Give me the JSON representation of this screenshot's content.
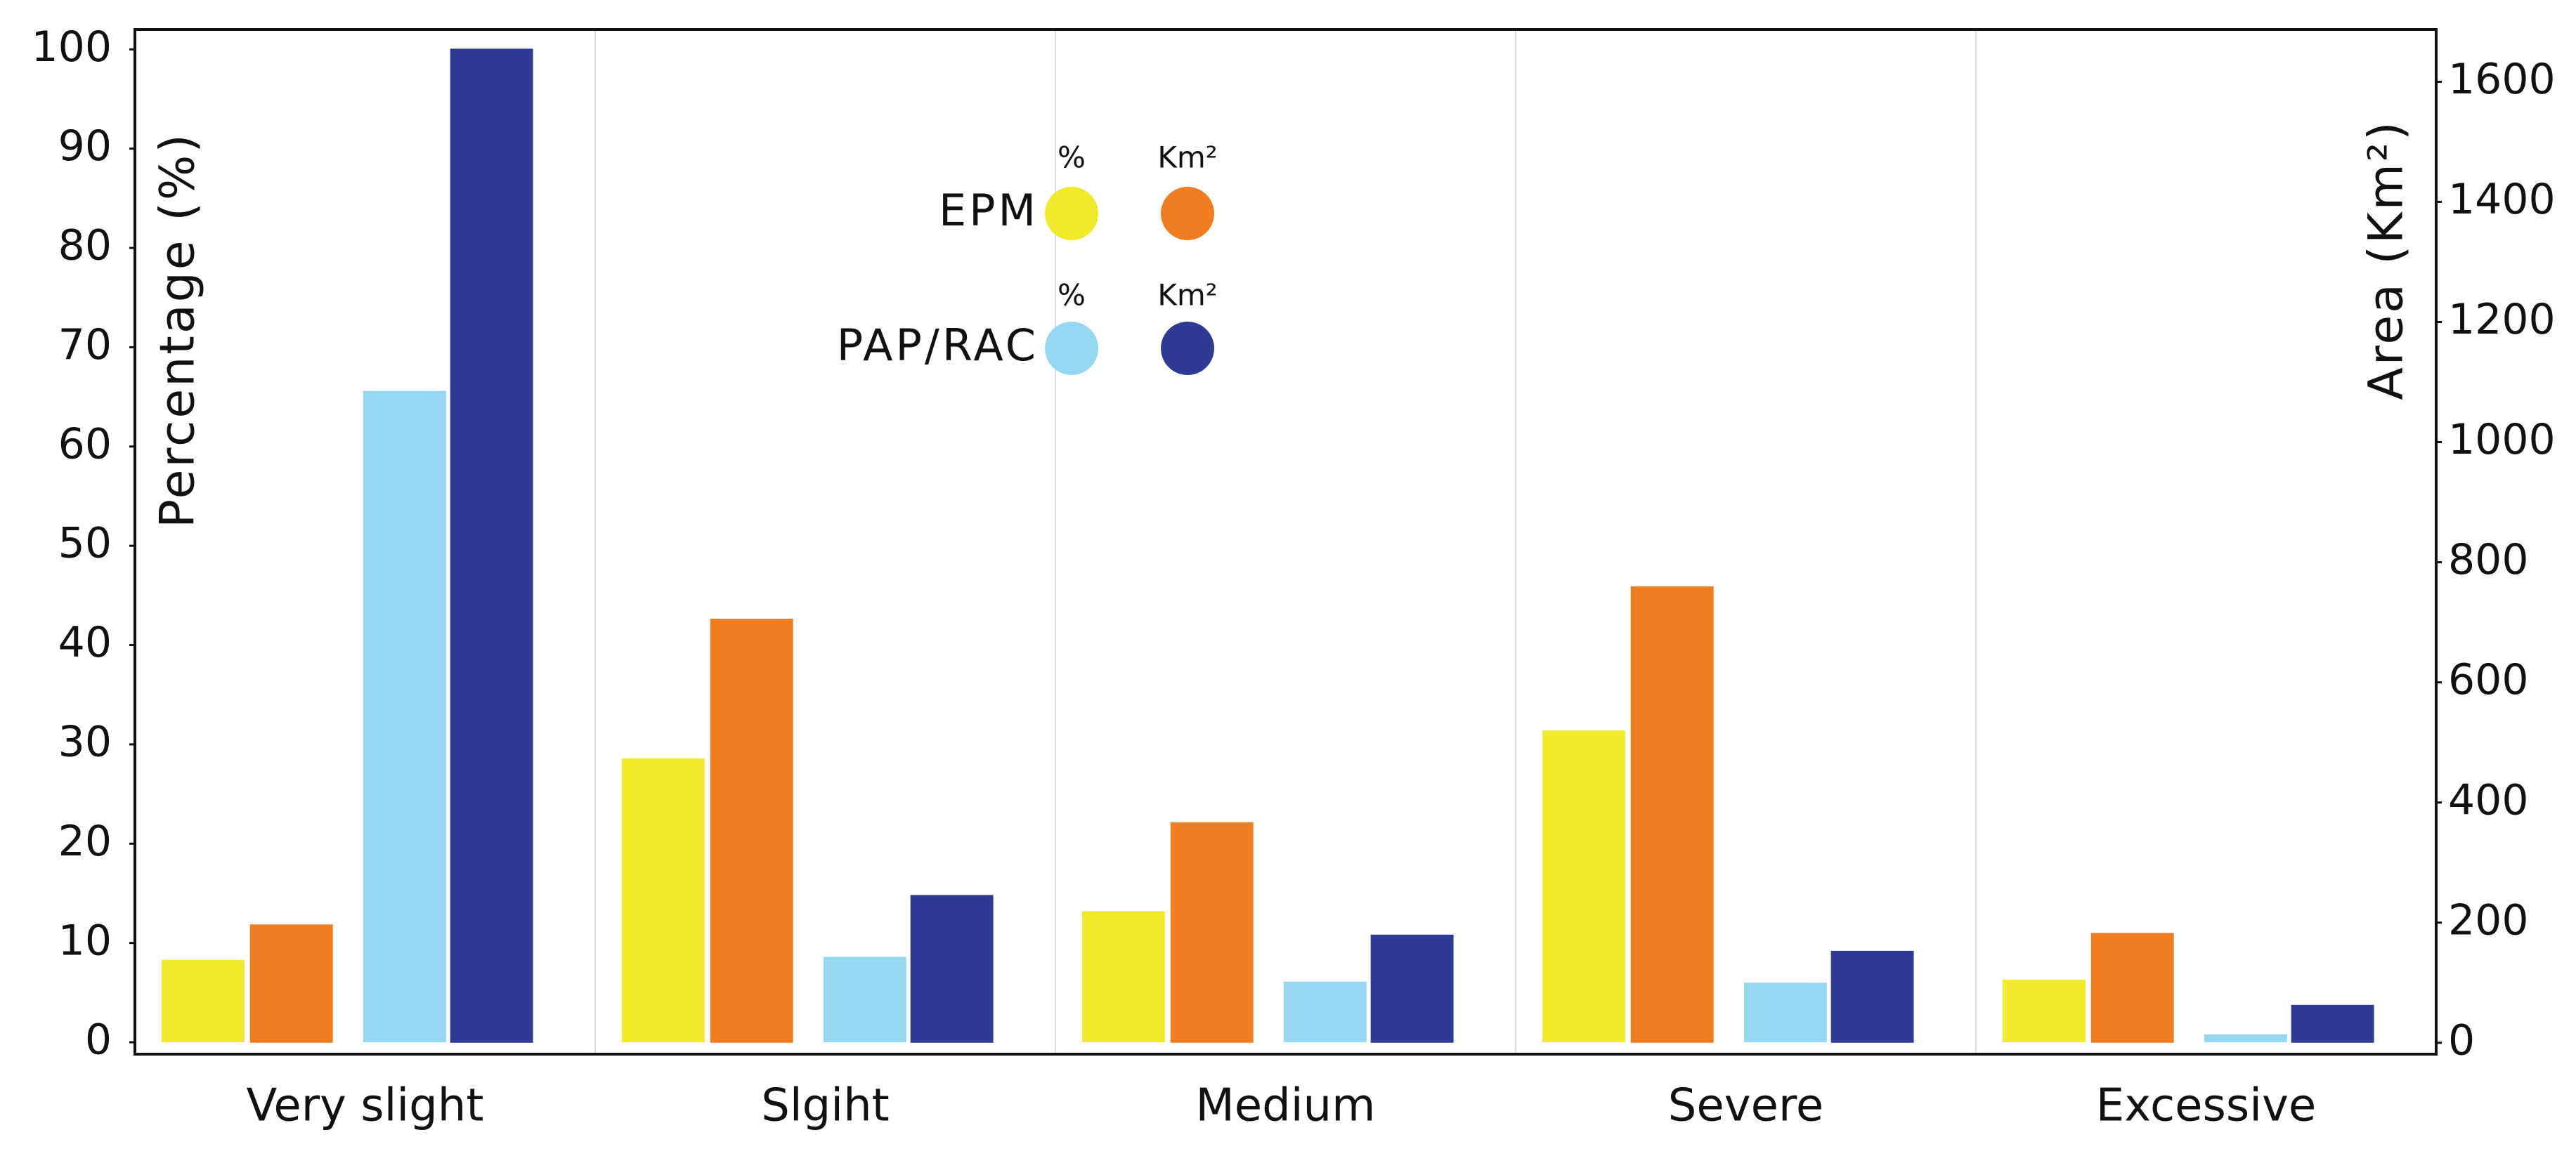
{
  "chart_data": {
    "type": "bar",
    "y_label": "Percentage (%)",
    "y2_label": "Area (Km²)",
    "categories": [
      "Very slight",
      "Slgiht",
      "Medium",
      "Severe",
      "Excessive"
    ],
    "legend": {
      "rows": [
        "EPM",
        "PAP/RAC"
      ],
      "columns": [
        "%",
        "Km²"
      ]
    },
    "series": [
      {
        "color": "#f2e92a",
        "values": [
          8.3,
          28.6,
          13.2,
          31.4,
          6.3
        ]
      },
      {
        "color": "#f07d22",
        "axis": "y2",
        "values": [
          197,
          706,
          367,
          760,
          183
        ]
      },
      {
        "color": "#95d7f0",
        "values": [
          65.6,
          8.6,
          6.1,
          6.0,
          0.8
        ]
      },
      {
        "color": "#2e3a94",
        "axis": "y2",
        "values": [
          1655,
          246,
          180,
          153,
          63
        ]
      }
    ],
    "ylim": [
      -1.2,
      102
    ],
    "yticks": [
      0,
      10,
      20,
      30,
      40,
      50,
      60,
      70,
      80,
      90,
      100
    ],
    "y2lim": [
      -19,
      1687
    ],
    "y2ticks": [
      0,
      200,
      400,
      600,
      800,
      1000,
      1200,
      1400,
      1600
    ],
    "grid": false
  }
}
